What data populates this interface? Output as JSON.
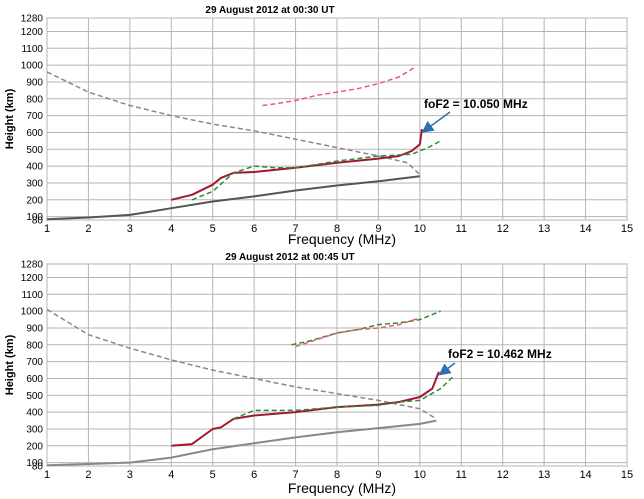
{
  "chart_data": [
    {
      "type": "line",
      "title": "29 August 2012 at 00:30 UT",
      "xlabel": "Frequency (MHz)",
      "ylabel": "Height (km)",
      "xlim": [
        1,
        15
      ],
      "ylim": [
        80,
        1280
      ],
      "x_ticks": [
        "1",
        "2",
        "3",
        "4",
        "5",
        "6",
        "7",
        "8",
        "9",
        "10",
        "11",
        "12",
        "13",
        "14",
        "15"
      ],
      "y_ticks": [
        "80",
        "100",
        "200",
        "300",
        "400",
        "500",
        "600",
        "700",
        "800",
        "900",
        "1000",
        "1100",
        "1200",
        "1280"
      ],
      "grid": true,
      "annotation": {
        "text": "foF2 = 10.050 MHz",
        "point": [
          10.05,
          620
        ]
      },
      "series": [
        {
          "style": "dashed",
          "color": "#888888",
          "x": [
            1.0,
            2.0,
            3.0,
            4.0,
            5.0,
            6.0,
            7.0,
            8.0,
            9.0,
            9.7,
            10.0
          ],
          "y": [
            960,
            840,
            760,
            700,
            650,
            610,
            560,
            510,
            460,
            420,
            350
          ]
        },
        {
          "style": "solid",
          "color": "#555555",
          "x": [
            1.0,
            2.0,
            3.0,
            3.5,
            4.0,
            5.0,
            6.0,
            7.0,
            8.0,
            9.0,
            9.5,
            10.0
          ],
          "y": [
            85,
            95,
            110,
            130,
            150,
            190,
            220,
            255,
            285,
            310,
            325,
            340
          ]
        },
        {
          "style": "solid",
          "color": "#a01830",
          "x": [
            4.0,
            4.5,
            5.0,
            5.2,
            5.5,
            6.0,
            7.0,
            8.0,
            9.0,
            9.5,
            9.8,
            10.0,
            10.05
          ],
          "y": [
            200,
            230,
            290,
            330,
            360,
            365,
            390,
            420,
            445,
            460,
            490,
            530,
            620
          ]
        },
        {
          "style": "dashed",
          "color": "#2e8b2e",
          "x": [
            4.5,
            5.0,
            5.5,
            6.0,
            6.5,
            7.0,
            8.0,
            9.0,
            9.8,
            10.2,
            10.5
          ],
          "y": [
            200,
            250,
            360,
            400,
            390,
            390,
            430,
            460,
            470,
            510,
            550
          ]
        },
        {
          "style": "dashed",
          "color": "#e85a7a",
          "x": [
            6.2,
            6.5,
            7.0,
            7.5,
            8.0,
            8.5,
            9.0,
            9.5,
            9.9
          ],
          "y": [
            760,
            770,
            790,
            820,
            840,
            860,
            890,
            930,
            990
          ]
        }
      ]
    },
    {
      "type": "line",
      "title": "29 August 2012 at 00:45 UT",
      "xlabel": "Frequency (MHz)",
      "ylabel": "Height (km)",
      "xlim": [
        1,
        15
      ],
      "ylim": [
        80,
        1280
      ],
      "x_ticks": [
        "1",
        "2",
        "3",
        "4",
        "5",
        "6",
        "7",
        "8",
        "9",
        "10",
        "11",
        "12",
        "13",
        "14",
        "15"
      ],
      "y_ticks": [
        "80",
        "100",
        "200",
        "300",
        "400",
        "500",
        "600",
        "700",
        "800",
        "900",
        "1000",
        "1100",
        "1200",
        "1280"
      ],
      "grid": true,
      "annotation": {
        "text": "foF2 = 10.462 MHz",
        "point": [
          10.46,
          640
        ]
      },
      "series": [
        {
          "style": "dashed",
          "color": "#888888",
          "x": [
            1.0,
            2.0,
            3.0,
            4.0,
            5.0,
            6.0,
            7.0,
            8.0,
            9.0,
            10.0,
            10.4
          ],
          "y": [
            1010,
            860,
            780,
            710,
            650,
            600,
            550,
            510,
            470,
            420,
            360
          ]
        },
        {
          "style": "solid",
          "color": "#888888",
          "x": [
            1.0,
            2.0,
            3.0,
            4.0,
            5.0,
            6.0,
            7.0,
            8.0,
            9.0,
            10.0,
            10.4
          ],
          "y": [
            85,
            92,
            100,
            130,
            180,
            215,
            250,
            280,
            305,
            330,
            350
          ]
        },
        {
          "style": "solid",
          "color": "#a01830",
          "x": [
            4.0,
            4.5,
            5.0,
            5.2,
            5.5,
            6.0,
            7.0,
            8.0,
            9.0,
            9.5,
            10.0,
            10.3,
            10.46
          ],
          "y": [
            200,
            210,
            300,
            310,
            360,
            380,
            400,
            430,
            445,
            460,
            490,
            540,
            640
          ]
        },
        {
          "style": "dashed",
          "color": "#2e8b2e",
          "x": [
            5.5,
            6.0,
            7.0,
            8.0,
            9.0,
            9.5,
            10.0,
            10.5,
            10.8
          ],
          "y": [
            360,
            410,
            410,
            430,
            440,
            460,
            470,
            540,
            610
          ]
        },
        {
          "style": "dashed",
          "color": "#2e8b2e",
          "x": [
            6.9,
            7.3,
            8.0,
            8.5,
            9.0,
            9.5,
            10.0,
            10.5
          ],
          "y": [
            800,
            820,
            870,
            890,
            920,
            930,
            950,
            1000
          ]
        },
        {
          "style": "dashed",
          "color": "#e85a7a",
          "x": [
            7.0,
            7.5,
            8.0,
            8.5,
            9.0,
            9.5,
            10.0
          ],
          "y": [
            790,
            830,
            870,
            890,
            900,
            920,
            960
          ]
        }
      ]
    }
  ]
}
